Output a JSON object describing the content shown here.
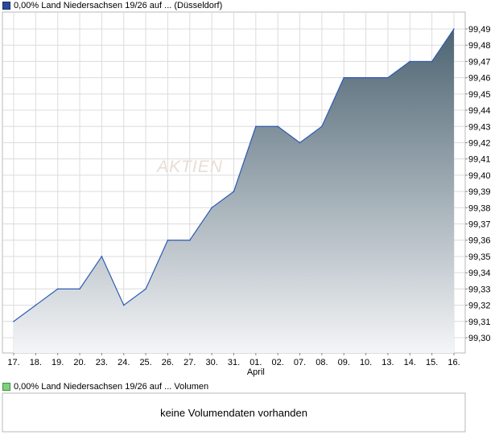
{
  "price_panel": {
    "legend": "0,00% Land Niedersachsen 19/26 auf ... (Düsseldorf)",
    "watermark": "AKTIEN"
  },
  "volume_panel": {
    "legend": "0,00% Land Niedersachsen 19/26 auf ... Volumen",
    "message": "keine Volumendaten vorhanden"
  },
  "colors": {
    "line": "#2d5bb5",
    "area_top": "#4d6472",
    "area_bottom": "#f4f5f7",
    "grid": "#dcdcdc",
    "frame": "#b8b8b8"
  },
  "chart_data": {
    "type": "area",
    "title": "",
    "xlabel": "",
    "ylabel": "",
    "x": [
      "17.",
      "18.",
      "19.",
      "20.",
      "23.",
      "24.",
      "25.",
      "26.",
      "27.",
      "30.",
      "31.",
      "01.",
      "02.",
      "07.",
      "08.",
      "09.",
      "10.",
      "13.",
      "14.",
      "15.",
      "16."
    ],
    "x_sublabels": [
      {
        "index": 11,
        "label": "April"
      }
    ],
    "series": [
      {
        "values": [
          99.31,
          99.32,
          99.33,
          99.33,
          99.35,
          99.32,
          99.33,
          99.36,
          99.36,
          99.38,
          99.39,
          99.43,
          99.43,
          99.42,
          99.43,
          99.46,
          99.46,
          99.46,
          99.47,
          99.47,
          99.49
        ]
      }
    ],
    "y_ticks": [
      "99,30",
      "99,31",
      "99,32",
      "99,33",
      "99,34",
      "99,35",
      "99,36",
      "99,37",
      "99,38",
      "99,39",
      "99,40",
      "99,41",
      "99,42",
      "99,43",
      "99,44",
      "99,45",
      "99,46",
      "99,47",
      "99,48",
      "99,49"
    ],
    "ylim": [
      99.295,
      99.49
    ],
    "y_axis_position": "right",
    "grid": true,
    "legend": "top-left"
  }
}
